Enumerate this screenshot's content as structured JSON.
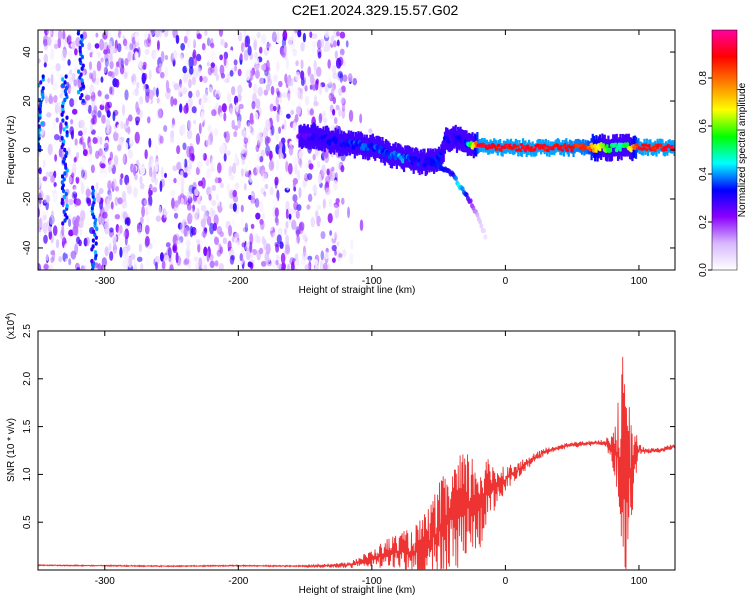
{
  "title": "C2E1.2024.329.15.57.G02",
  "chart_data": [
    {
      "type": "heatmap",
      "xlabel": "Height of straight line (km)",
      "ylabel": "Frequency (Hz)",
      "xlim": [
        -350,
        127
      ],
      "ylim": [
        -49,
        49
      ],
      "x_ticks": [
        -300,
        -200,
        -100,
        0,
        100
      ],
      "x_tick_labels": [
        "-300",
        "-200",
        "-100",
        "0",
        "100"
      ],
      "y_ticks": [
        -40,
        -20,
        0,
        20,
        40
      ],
      "y_tick_labels": [
        "-40",
        "-20",
        "0",
        "20",
        "40"
      ],
      "colorbar": {
        "label": "Normalized spectral amplitude",
        "range": [
          0,
          1
        ],
        "ticks": [
          0.0,
          0.2,
          0.4,
          0.6,
          0.8
        ],
        "tick_labels": [
          "0.0",
          "0.2",
          "0.4",
          "0.6",
          "0.8"
        ],
        "colormap": [
          "#ffffff",
          "#d8b8ff",
          "#8a00ff",
          "#0000ff",
          "#00ffff",
          "#00ff00",
          "#ffff00",
          "#ff8000",
          "#ff0000",
          "#ff00a0"
        ]
      },
      "noise_region_x": [
        -350,
        -120
      ],
      "signal_track": {
        "x": [
          -155,
          -140,
          -125,
          -110,
          -100,
          -90,
          -80,
          -70,
          -60,
          -50,
          -45,
          -40,
          -35,
          -30,
          -25,
          -20,
          -10,
          0,
          20,
          40,
          60,
          80,
          90,
          100,
          127
        ],
        "y": [
          6,
          5,
          3,
          2,
          1,
          -1,
          -3,
          -4,
          -5,
          -4,
          4,
          5,
          4,
          3,
          2,
          2,
          1,
          1,
          1,
          1,
          1,
          1,
          1,
          1,
          1
        ],
        "amplitude": [
          0.25,
          0.3,
          0.3,
          0.35,
          0.35,
          0.35,
          0.4,
          0.35,
          0.3,
          0.35,
          0.3,
          0.3,
          0.3,
          0.3,
          0.6,
          0.9,
          0.9,
          0.9,
          0.9,
          0.9,
          0.85,
          0.5,
          0.5,
          0.9,
          0.9
        ]
      },
      "secondary_track": {
        "x": [
          -60,
          -50,
          -40,
          -35,
          -30,
          -25,
          -20,
          -15
        ],
        "y": [
          -4,
          -6,
          -10,
          -14,
          -18,
          -22,
          -28,
          -35
        ],
        "amplitude": [
          0.3,
          0.35,
          0.3,
          0.45,
          0.35,
          0.2,
          0.1,
          0.05
        ]
      },
      "vertical_streaks": [
        {
          "x": -348,
          "y": [
            0,
            30
          ]
        },
        {
          "x": -330,
          "y": [
            -30,
            30
          ]
        },
        {
          "x": -318,
          "y": [
            20,
            49
          ]
        },
        {
          "x": -308,
          "y": [
            -49,
            -15
          ]
        }
      ]
    },
    {
      "type": "line",
      "xlabel": "Height of straight line (km)",
      "ylabel": "SNR (10 * v/v)",
      "y_multiplier_label": "(x10",
      "y_multiplier_exponent": "4",
      "y_multiplier_close": ")",
      "xlim": [
        -350,
        127
      ],
      "ylim": [
        0,
        25000
      ],
      "x_ticks": [
        -300,
        -200,
        -100,
        0,
        100
      ],
      "x_tick_labels": [
        "-300",
        "-200",
        "-100",
        "0",
        "100"
      ],
      "y_ticks": [
        5000,
        10000,
        15000,
        20000,
        25000
      ],
      "y_tick_labels": [
        "0.5",
        "1.0",
        "1.5",
        "2.0",
        "2.5"
      ],
      "color": "#ee3333",
      "series": [
        {
          "x": [
            -350,
            -300,
            -250,
            -200,
            -150,
            -120,
            -110,
            -100,
            -90,
            -80,
            -70,
            -60,
            -50,
            -40,
            -30,
            -20,
            -10,
            0,
            10,
            20,
            30,
            40,
            50,
            60,
            70,
            75,
            80,
            85,
            88,
            90,
            92,
            95,
            98,
            100,
            105,
            110,
            115,
            120,
            127
          ],
          "y": [
            500,
            450,
            400,
            450,
            400,
            500,
            800,
            1200,
            1700,
            2000,
            1800,
            2500,
            4000,
            5500,
            6500,
            7000,
            8500,
            9500,
            10500,
            11500,
            12400,
            12800,
            13100,
            13200,
            13300,
            13200,
            13000,
            12000,
            11000,
            9000,
            10000,
            11000,
            12000,
            12600,
            12400,
            12500,
            12500,
            12700,
            12900
          ],
          "jitter": [
            50,
            60,
            60,
            60,
            80,
            300,
            600,
            900,
            1500,
            2000,
            2500,
            3500,
            5000,
            6000,
            6000,
            5000,
            3000,
            1500,
            800,
            600,
            400,
            300,
            300,
            300,
            300,
            400,
            2000,
            6000,
            12000,
            10000,
            8000,
            5000,
            2500,
            600,
            300,
            300,
            300,
            300,
            300
          ]
        }
      ]
    }
  ]
}
